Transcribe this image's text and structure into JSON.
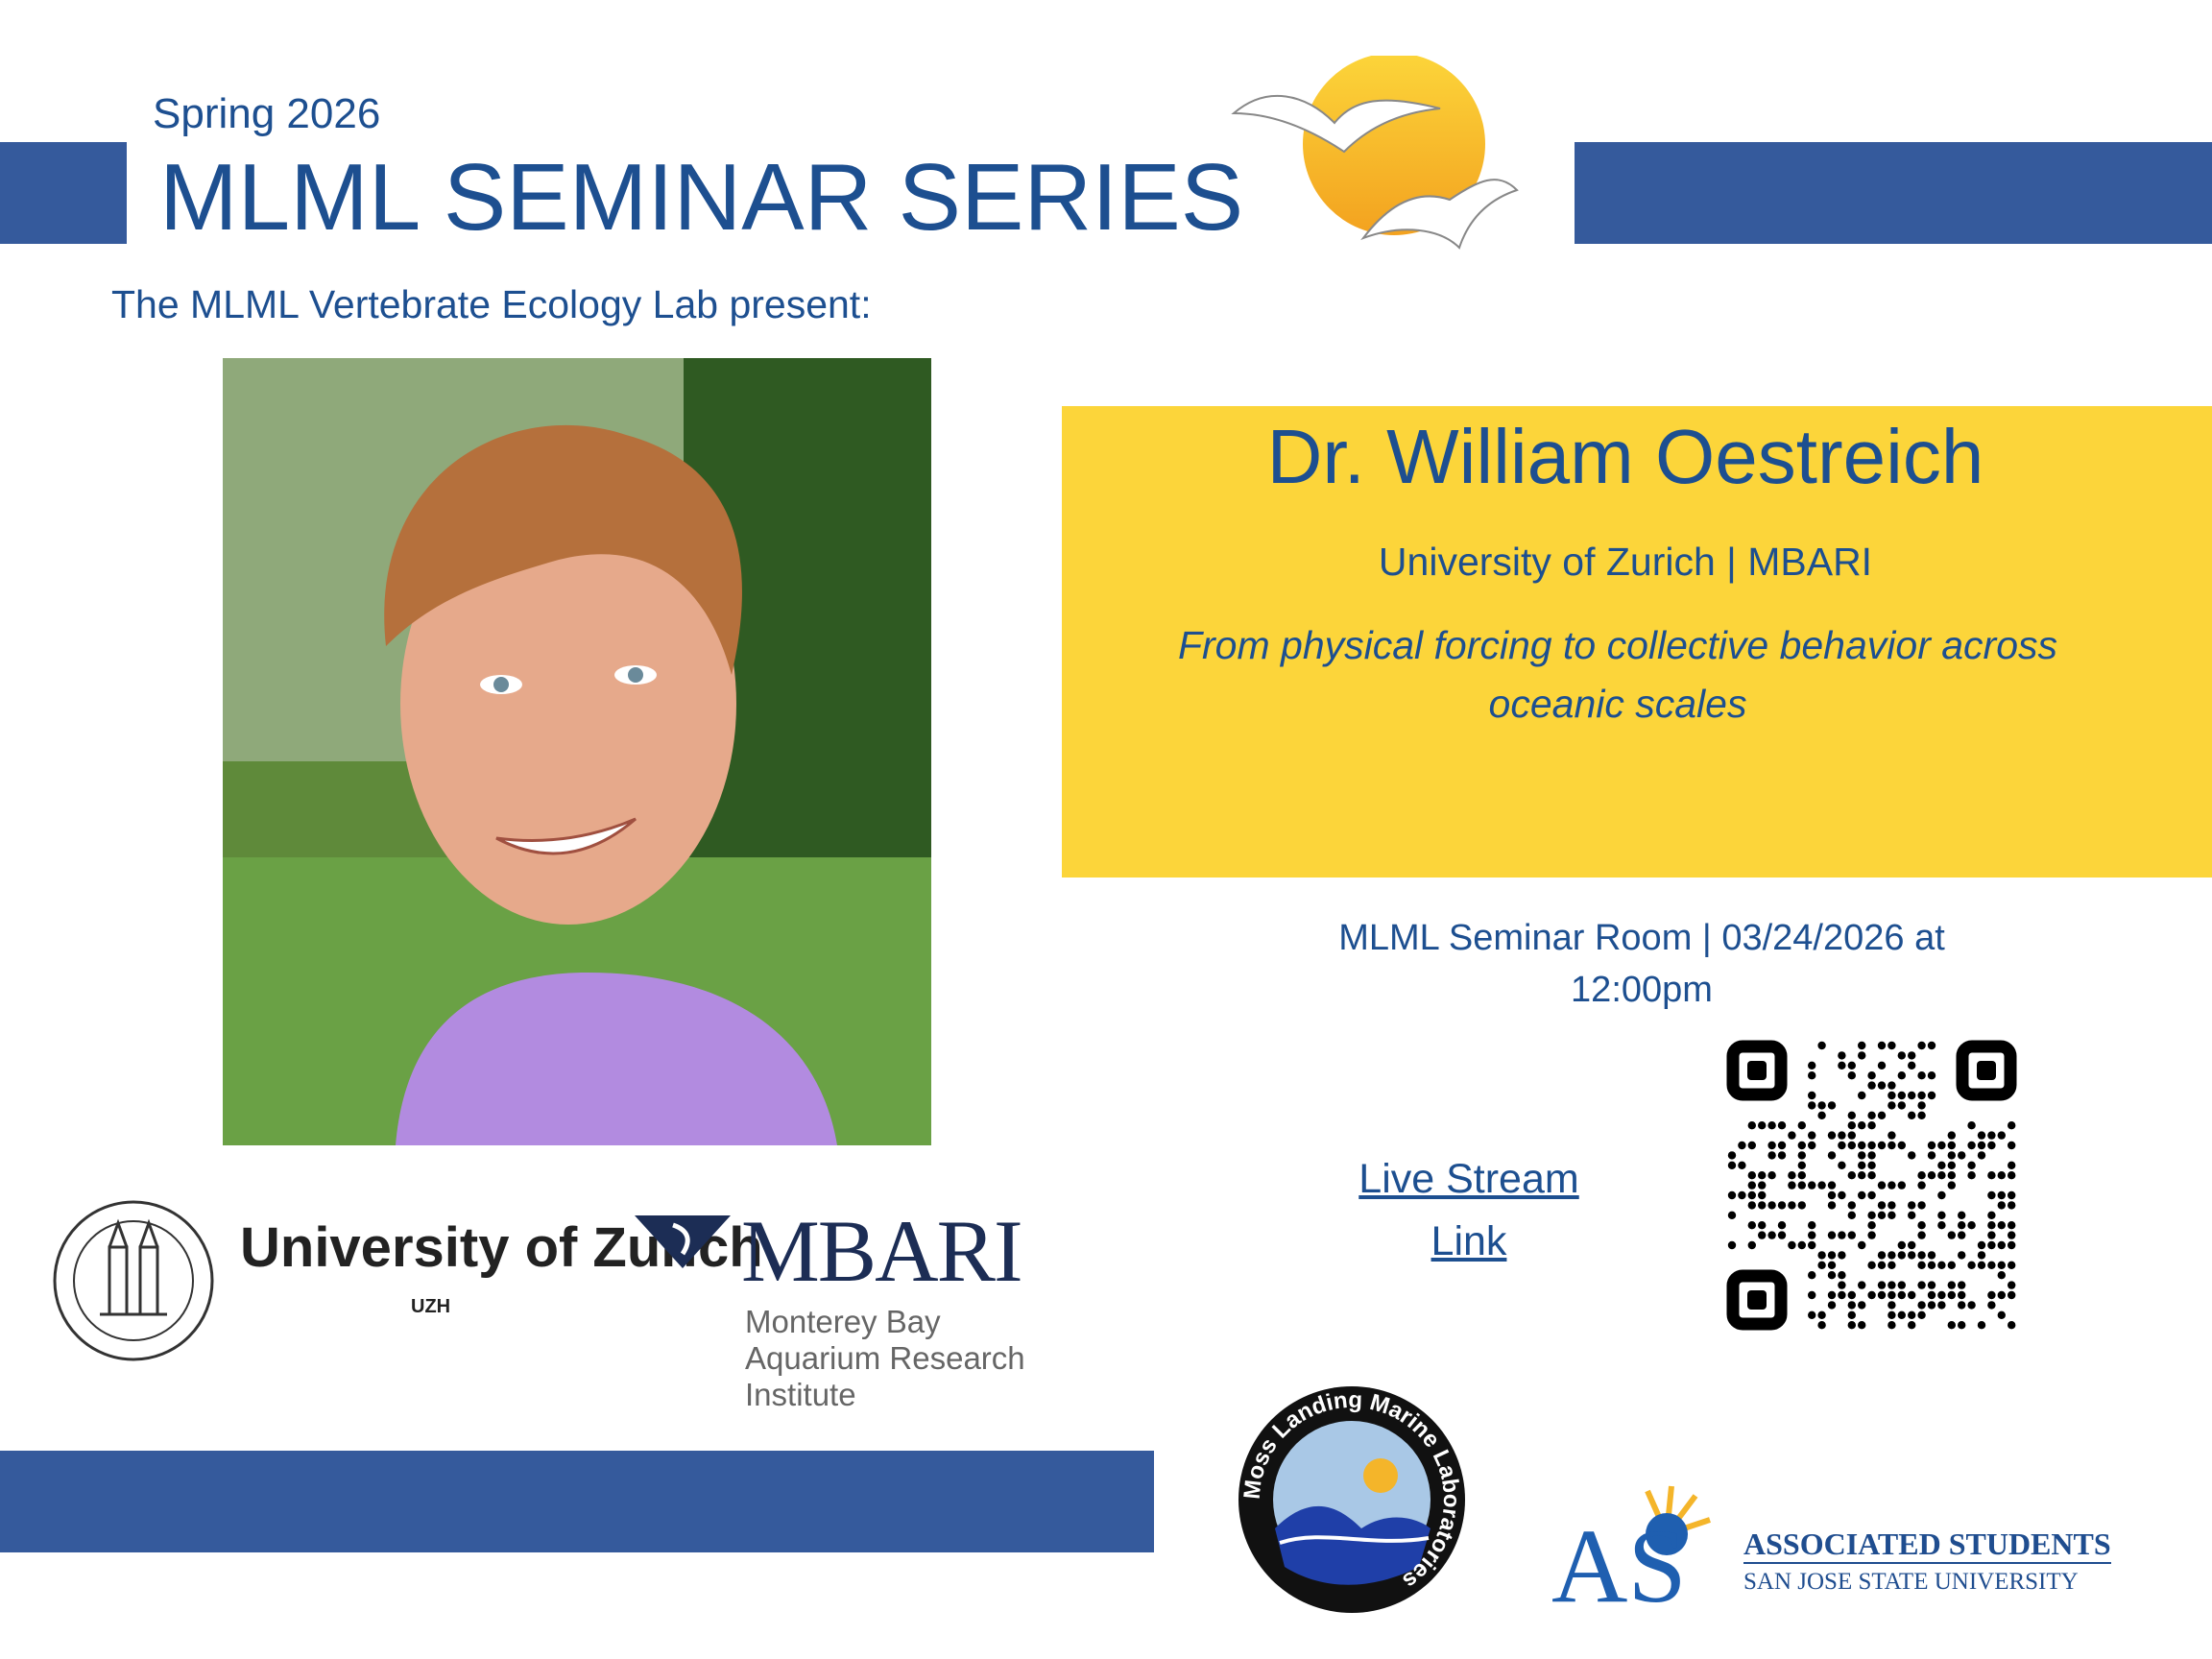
{
  "header": {
    "season": "Spring 2026",
    "title": "MLML SEMINAR SERIES",
    "presenter": "The MLML Vertebrate Ecology Lab present:"
  },
  "speaker": {
    "name": "Dr. William Oestreich",
    "affiliation": "University of Zurich | MBARI"
  },
  "talk": {
    "title": "From physical forcing to collective behavior across oceanic scales"
  },
  "event": {
    "location": "MLML Seminar Room | 03/24/2026 at 12:00pm",
    "link": "Live Stream Link"
  },
  "logos": {
    "uzh": {
      "name": "University of Zurich",
      "tag": "UZH"
    },
    "mbari": {
      "name": "MBARI",
      "full": "Monterey Bay Aquarium Research Institute"
    },
    "mlml": "Moss Landing Marine Laboratories",
    "as": {
      "name": "ASSOCIATED STUDENTS",
      "school": "SAN JOSE STATE UNIVERSITY"
    }
  }
}
